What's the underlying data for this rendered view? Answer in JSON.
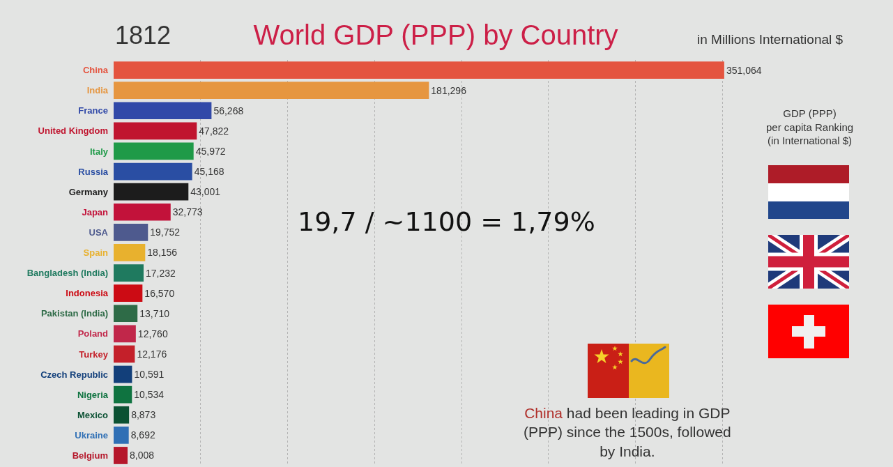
{
  "chart_data": {
    "type": "bar",
    "orientation": "horizontal",
    "title": "World GDP (PPP) by Country",
    "subtitle": "in Millions International $",
    "categories": [
      "China",
      "India",
      "France",
      "United Kingdom",
      "Italy",
      "Russia",
      "Germany",
      "Japan",
      "USA",
      "Spain",
      "Bangladesh (India)",
      "Indonesia",
      "Pakistan (India)",
      "Poland",
      "Turkey",
      "Czech Republic",
      "Nigeria",
      "Mexico",
      "Ukraine",
      "Belgium"
    ],
    "values": [
      351064,
      181296,
      56268,
      47822,
      45972,
      45168,
      43001,
      32773,
      19752,
      18156,
      17232,
      16570,
      13710,
      12760,
      12176,
      10591,
      10534,
      8873,
      8692,
      8008
    ],
    "value_labels": [
      "351,064",
      "181,296",
      "56,268",
      "47,822",
      "45,972",
      "45,168",
      "43,001",
      "32,773",
      "19,752",
      "18,156",
      "17,232",
      "16,570",
      "13,710",
      "12,760",
      "12,176",
      "10,591",
      "10,534",
      "8,873",
      "8,692",
      "8,008"
    ],
    "colors": [
      "#e4543f",
      "#e69640",
      "#3149a8",
      "#c0152f",
      "#1f9a48",
      "#2a4ea3",
      "#1c1c1c",
      "#c2123a",
      "#4e5a8e",
      "#e8b12e",
      "#1f7a5f",
      "#cc0b14",
      "#2e6b47",
      "#c1274a",
      "#c4202a",
      "#123f7a",
      "#0f7340",
      "#0b5133",
      "#2f6fb5",
      "#b5172b"
    ],
    "grid": "x",
    "tick_labels": "y",
    "annotations": [
      "1812",
      "GDP (PPP)\nper capita Ranking\n(in International $)",
      "19,7 / ~1100 = 1,79%",
      "China had been leading in GDP\n(PPP) since the 1500s, followed\nby India."
    ]
  }
}
